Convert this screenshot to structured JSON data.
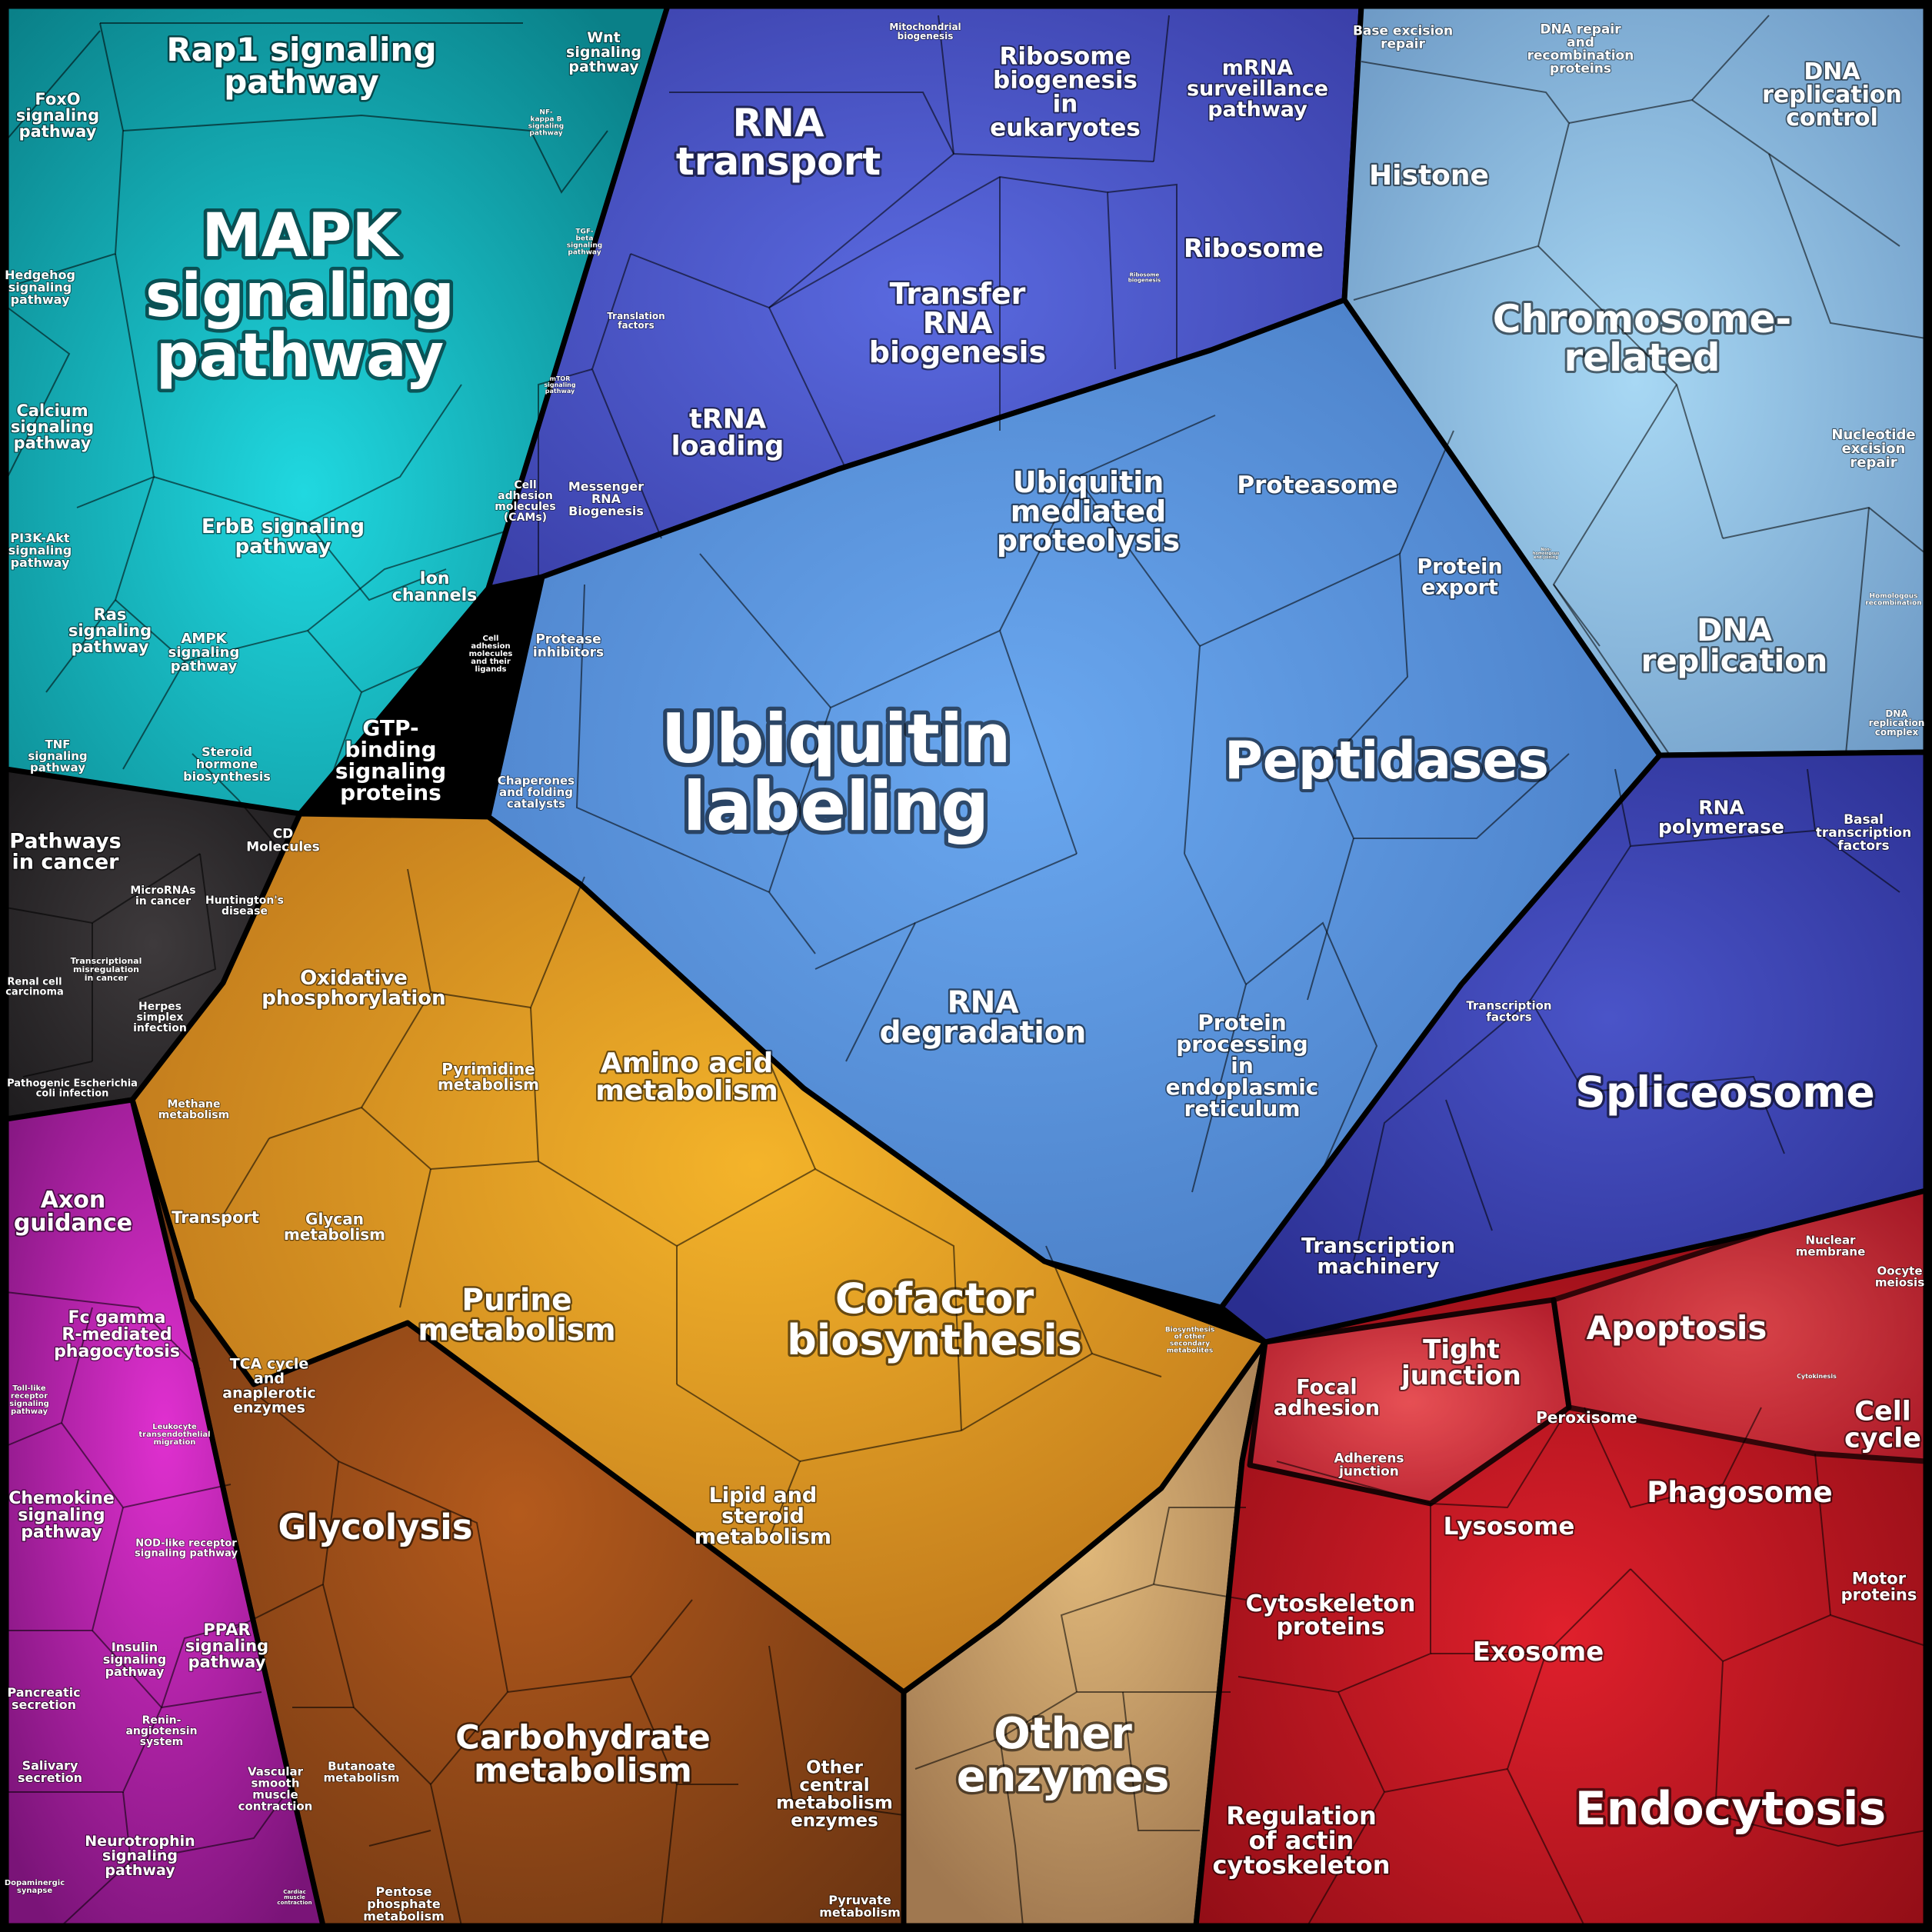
{
  "groups": [
    {
      "name": "teal",
      "color": "#10a8b4",
      "labels": [
        {
          "id": "rap1",
          "lines": [
            "Rap1 signaling",
            "pathway"
          ]
        },
        {
          "id": "wnt",
          "lines": [
            "Wnt",
            "signaling",
            "pathway"
          ]
        },
        {
          "id": "foxo",
          "lines": [
            "FoxO",
            "signaling",
            "pathway"
          ]
        },
        {
          "id": "nfkb",
          "lines": [
            "NF-",
            "kappa B",
            "signaling",
            "pathway"
          ]
        },
        {
          "id": "mapk",
          "lines": [
            "MAPK",
            "signaling",
            "pathway"
          ]
        },
        {
          "id": "tgf",
          "lines": [
            "TGF-",
            "beta",
            "signaling",
            "pathway"
          ]
        },
        {
          "id": "hedgehog",
          "lines": [
            "Hedgehog",
            "signaling",
            "pathway"
          ]
        },
        {
          "id": "mtor",
          "lines": [
            "mTOR",
            "signaling",
            "pathway"
          ]
        },
        {
          "id": "calcium",
          "lines": [
            "Calcium",
            "signaling",
            "pathway"
          ]
        },
        {
          "id": "cams",
          "lines": [
            "Cell",
            "adhesion",
            "molecules",
            "(CAMs)"
          ]
        },
        {
          "id": "erbb",
          "lines": [
            "ErbB signaling",
            "pathway"
          ]
        },
        {
          "id": "pi3k",
          "lines": [
            "PI3K-Akt",
            "signaling",
            "pathway"
          ]
        },
        {
          "id": "ion",
          "lines": [
            "Ion",
            "channels"
          ]
        },
        {
          "id": "ras",
          "lines": [
            "Ras",
            "signaling",
            "pathway"
          ]
        },
        {
          "id": "ampk",
          "lines": [
            "AMPK",
            "signaling",
            "pathway"
          ]
        },
        {
          "id": "cam_lig",
          "lines": [
            "Cell",
            "adhesion",
            "molecules",
            "and their",
            "ligands"
          ]
        },
        {
          "id": "tnf",
          "lines": [
            "TNF",
            "signaling",
            "pathway"
          ]
        },
        {
          "id": "steroid_h",
          "lines": [
            "Steroid",
            "hormone",
            "biosynthesis"
          ]
        },
        {
          "id": "gtp",
          "lines": [
            "GTP-",
            "binding",
            "signaling",
            "proteins"
          ]
        },
        {
          "id": "cd",
          "lines": [
            "CD",
            "Molecules"
          ]
        }
      ]
    },
    {
      "name": "indigo",
      "color": "#4b58c8",
      "labels": [
        {
          "id": "mito",
          "lines": [
            "Mitochondrial",
            "biogenesis"
          ]
        },
        {
          "id": "rna_tr",
          "lines": [
            "RNA",
            "transport"
          ]
        },
        {
          "id": "ribo_bio",
          "lines": [
            "Ribosome",
            "biogenesis",
            "in",
            "eukaryotes"
          ]
        },
        {
          "id": "mrna",
          "lines": [
            "mRNA",
            "surveillance",
            "pathway"
          ]
        },
        {
          "id": "ribosome",
          "lines": [
            "Ribosome"
          ]
        },
        {
          "id": "ribo_small",
          "lines": [
            "Ribosome",
            "biogenesis"
          ]
        },
        {
          "id": "trna_bio",
          "lines": [
            "Transfer",
            "RNA",
            "biogenesis"
          ]
        },
        {
          "id": "transl",
          "lines": [
            "Translation",
            "factors"
          ]
        },
        {
          "id": "trna_load",
          "lines": [
            "tRNA",
            "loading"
          ]
        },
        {
          "id": "messenger",
          "lines": [
            "Messenger",
            "RNA",
            "Biogenesis"
          ]
        }
      ]
    },
    {
      "name": "lightblue",
      "color": "#7fb0dc",
      "labels": [
        {
          "id": "ber",
          "lines": [
            "Base excision",
            "repair"
          ]
        },
        {
          "id": "dna_rep_prot",
          "lines": [
            "DNA repair",
            "and",
            "recombination",
            "proteins"
          ]
        },
        {
          "id": "dna_rc",
          "lines": [
            "DNA",
            "replication",
            "control"
          ]
        },
        {
          "id": "histone",
          "lines": [
            "Histone"
          ]
        },
        {
          "id": "chromo",
          "lines": [
            "Chromosome-",
            "related"
          ]
        },
        {
          "id": "ner",
          "lines": [
            "Nucleotide",
            "excision",
            "repair"
          ]
        },
        {
          "id": "nhej",
          "lines": [
            "Non-",
            "homologous",
            "end-joining"
          ]
        },
        {
          "id": "homrec",
          "lines": [
            "Homologous",
            "recombination"
          ]
        },
        {
          "id": "dna_repl",
          "lines": [
            "DNA",
            "replication"
          ]
        },
        {
          "id": "dna_rcx",
          "lines": [
            "DNA",
            "replication",
            "complex"
          ]
        }
      ]
    },
    {
      "name": "blue",
      "color": "#5590d8",
      "labels": [
        {
          "id": "ubq_med",
          "lines": [
            "Ubiquitin",
            "mediated",
            "proteolysis"
          ]
        },
        {
          "id": "proteasome",
          "lines": [
            "Proteasome"
          ]
        },
        {
          "id": "prot_exp",
          "lines": [
            "Protein",
            "export"
          ]
        },
        {
          "id": "protease_inh",
          "lines": [
            "Protease",
            "inhibitors"
          ]
        },
        {
          "id": "ubq_label",
          "lines": [
            "Ubiquitin",
            "labeling"
          ]
        },
        {
          "id": "peptidases",
          "lines": [
            "Peptidases"
          ]
        },
        {
          "id": "chaperones",
          "lines": [
            "Chaperones",
            "and folding",
            "catalysts"
          ]
        },
        {
          "id": "rna_deg",
          "lines": [
            "RNA",
            "degradation"
          ]
        },
        {
          "id": "prot_er",
          "lines": [
            "Protein",
            "processing",
            "in",
            "endoplasmic",
            "reticulum"
          ]
        }
      ]
    },
    {
      "name": "navy",
      "color": "#3a42b0",
      "labels": [
        {
          "id": "rna_pol",
          "lines": [
            "RNA",
            "polymerase"
          ]
        },
        {
          "id": "basal_tf",
          "lines": [
            "Basal",
            "transcription",
            "factors"
          ]
        },
        {
          "id": "tf",
          "lines": [
            "Transcription",
            "factors"
          ]
        },
        {
          "id": "splice",
          "lines": [
            "Spliceosome"
          ]
        },
        {
          "id": "tx_mach",
          "lines": [
            "Transcription",
            "machinery"
          ]
        }
      ]
    },
    {
      "name": "dark",
      "color": "#2c2a2c",
      "labels": [
        {
          "id": "cancer",
          "lines": [
            "Pathways",
            "in cancer"
          ]
        },
        {
          "id": "mirna",
          "lines": [
            "MicroRNAs",
            "in cancer"
          ]
        },
        {
          "id": "hunt",
          "lines": [
            "Huntington's",
            "disease"
          ]
        },
        {
          "id": "renal",
          "lines": [
            "Renal cell",
            "carcinoma"
          ]
        },
        {
          "id": "tx_mis",
          "lines": [
            "Transcriptional",
            "misregulation",
            "in cancer"
          ]
        },
        {
          "id": "herpes",
          "lines": [
            "Herpes",
            "simplex",
            "infection"
          ]
        },
        {
          "id": "ecoli",
          "lines": [
            "Pathogenic Escherichia",
            "coli infection"
          ]
        }
      ]
    },
    {
      "name": "orange",
      "color": "#d8921c",
      "labels": [
        {
          "id": "oxphos",
          "lines": [
            "Oxidative",
            "phosphorylation"
          ]
        },
        {
          "id": "pyrim",
          "lines": [
            "Pyrimidine",
            "metabolism"
          ]
        },
        {
          "id": "aa",
          "lines": [
            "Amino acid",
            "metabolism"
          ]
        },
        {
          "id": "methane",
          "lines": [
            "Methane",
            "metabolism"
          ]
        },
        {
          "id": "glycan",
          "lines": [
            "Glycan",
            "metabolism"
          ]
        },
        {
          "id": "purine",
          "lines": [
            "Purine",
            "metabolism"
          ]
        },
        {
          "id": "cofactor",
          "lines": [
            "Cofactor",
            "biosynthesis"
          ]
        },
        {
          "id": "secondary",
          "lines": [
            "Biosynthesis",
            "of other",
            "secondary",
            "metabolites"
          ]
        },
        {
          "id": "lipid",
          "lines": [
            "Lipid and",
            "steroid",
            "metabolism"
          ]
        }
      ]
    },
    {
      "name": "brown",
      "color": "#8c4a18",
      "labels": [
        {
          "id": "transport",
          "lines": [
            "Transport"
          ]
        },
        {
          "id": "tca",
          "lines": [
            "TCA cycle",
            "and",
            "anaplerotic",
            "enzymes"
          ]
        },
        {
          "id": "glycolysis",
          "lines": [
            "Glycolysis"
          ]
        },
        {
          "id": "carb",
          "lines": [
            "Carbohydrate",
            "metabolism"
          ]
        },
        {
          "id": "butan",
          "lines": [
            "Butanoate",
            "metabolism"
          ]
        },
        {
          "id": "other_cme",
          "lines": [
            "Other",
            "central",
            "metabolism",
            "enzymes"
          ]
        },
        {
          "id": "ppp",
          "lines": [
            "Pentose",
            "phosphate",
            "metabolism"
          ]
        },
        {
          "id": "pyruvate",
          "lines": [
            "Pyruvate",
            "metabolism"
          ]
        }
      ]
    },
    {
      "name": "tan",
      "color": "#c8a070",
      "labels": [
        {
          "id": "other_enz",
          "lines": [
            "Other",
            "enzymes"
          ]
        }
      ]
    },
    {
      "name": "magenta",
      "color": "#b0209c",
      "labels": [
        {
          "id": "axon",
          "lines": [
            "Axon",
            "guidance"
          ]
        },
        {
          "id": "fcg",
          "lines": [
            "Fc gamma",
            "R-mediated",
            "phagocytosis"
          ]
        },
        {
          "id": "tlr",
          "lines": [
            "Toll-like",
            "receptor",
            "signaling",
            "pathway"
          ]
        },
        {
          "id": "leuko",
          "lines": [
            "Leukocyte",
            "transendothelial",
            "migration"
          ]
        },
        {
          "id": "chemokine",
          "lines": [
            "Chemokine",
            "signaling",
            "pathway"
          ]
        },
        {
          "id": "nod",
          "lines": [
            "NOD-like receptor",
            "signaling pathway"
          ]
        },
        {
          "id": "ppar",
          "lines": [
            "PPAR",
            "signaling",
            "pathway"
          ]
        },
        {
          "id": "insulin",
          "lines": [
            "Insulin",
            "signaling",
            "pathway"
          ]
        },
        {
          "id": "panc",
          "lines": [
            "Pancreatic",
            "secretion"
          ]
        },
        {
          "id": "renin",
          "lines": [
            "Renin-",
            "angiotensin",
            "system"
          ]
        },
        {
          "id": "saliv",
          "lines": [
            "Salivary",
            "secretion"
          ]
        },
        {
          "id": "vsmc",
          "lines": [
            "Vascular",
            "smooth",
            "muscle",
            "contraction"
          ]
        },
        {
          "id": "neurotroph",
          "lines": [
            "Neurotrophin",
            "signaling",
            "pathway"
          ]
        },
        {
          "id": "dopa",
          "lines": [
            "Dopaminergic",
            "synapse"
          ]
        },
        {
          "id": "cardiac",
          "lines": [
            "Cardiac",
            "muscle",
            "contraction"
          ]
        }
      ]
    },
    {
      "name": "red",
      "color": "#c81c2c",
      "labels": [
        {
          "id": "nuc_mem",
          "lines": [
            "Nuclear",
            "membrane"
          ]
        },
        {
          "id": "oocyte",
          "lines": [
            "Oocyte",
            "meiosis"
          ]
        },
        {
          "id": "apoptosis",
          "lines": [
            "Apoptosis"
          ]
        },
        {
          "id": "tight",
          "lines": [
            "Tight",
            "junction"
          ]
        },
        {
          "id": "focal",
          "lines": [
            "Focal",
            "adhesion"
          ]
        },
        {
          "id": "cytokinesis",
          "lines": [
            "Cytokinesis"
          ]
        },
        {
          "id": "cell_cycle",
          "lines": [
            "Cell",
            "cycle"
          ]
        },
        {
          "id": "peroxisome",
          "lines": [
            "Peroxisome"
          ]
        },
        {
          "id": "adherens",
          "lines": [
            "Adherens",
            "junction"
          ]
        },
        {
          "id": "phagosome",
          "lines": [
            "Phagosome"
          ]
        },
        {
          "id": "lysosome",
          "lines": [
            "Lysosome"
          ]
        },
        {
          "id": "motor",
          "lines": [
            "Motor",
            "proteins"
          ]
        },
        {
          "id": "cytoskel",
          "lines": [
            "Cytoskeleton",
            "proteins"
          ]
        },
        {
          "id": "exosome",
          "lines": [
            "Exosome"
          ]
        },
        {
          "id": "endocyt",
          "lines": [
            "Endocytosis"
          ]
        },
        {
          "id": "reg_actin",
          "lines": [
            "Regulation",
            "of actin",
            "cytoskeleton"
          ]
        }
      ]
    }
  ]
}
